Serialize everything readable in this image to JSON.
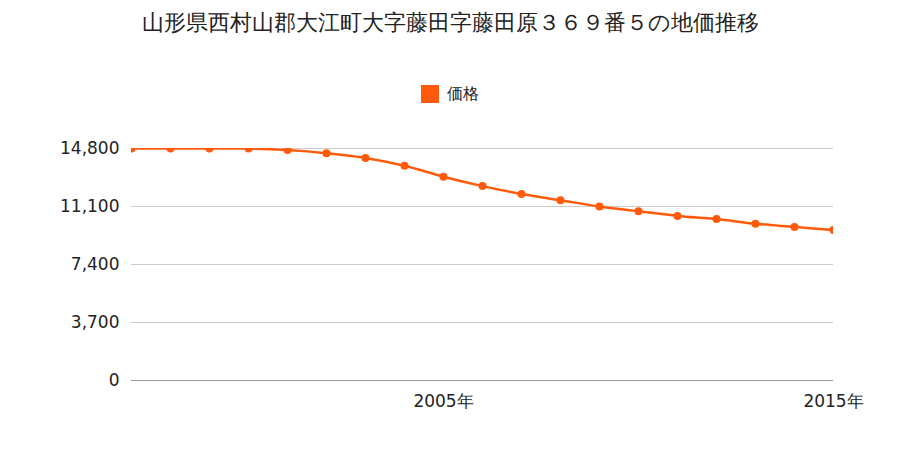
{
  "chart_data": {
    "type": "line",
    "title": "山形県西村山郡大江町大字藤田字藤田原３６９番５の地価推移",
    "x": [
      1997,
      1998,
      1999,
      2000,
      2001,
      2002,
      2003,
      2004,
      2005,
      2006,
      2007,
      2008,
      2009,
      2010,
      2011,
      2012,
      2013,
      2014,
      2015
    ],
    "series": [
      {
        "name": "価格",
        "color": "#ff5a0a",
        "marker": "circle",
        "line_style": "solid",
        "values": [
          14800,
          14800,
          14800,
          14800,
          14700,
          14500,
          14200,
          13700,
          13000,
          12400,
          11900,
          11500,
          11100,
          10800,
          10500,
          10300,
          10000,
          9800,
          9600
        ]
      }
    ],
    "xlim": [
      1997,
      2015
    ],
    "xticks": [
      {
        "value": 2005,
        "label": "2005年"
      },
      {
        "value": 2015,
        "label": "2015年"
      }
    ],
    "ylim": [
      0,
      14800
    ],
    "yticks": [
      0,
      {
        "value": 3700,
        "label": "3,700"
      },
      {
        "value": 7400,
        "label": "7,400"
      },
      {
        "value": 11100,
        "label": "11,100"
      },
      {
        "value": 14800,
        "label": "14,800"
      }
    ],
    "grid": true,
    "legend": "top"
  }
}
